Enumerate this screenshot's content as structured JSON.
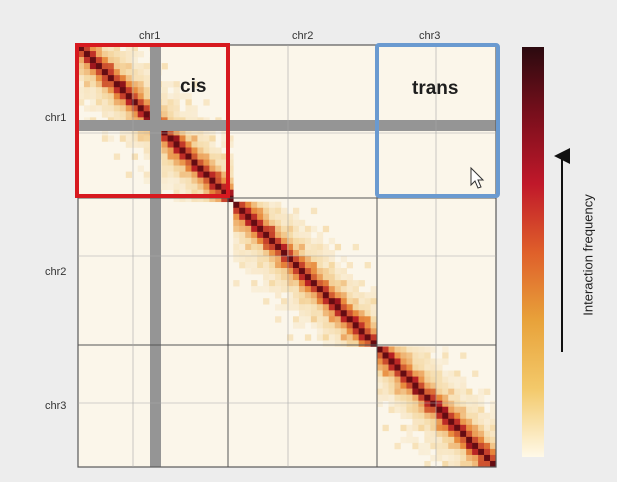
{
  "chromosomes": [
    "chr1",
    "chr2",
    "chr3"
  ],
  "top_labels": [
    "chr1",
    "chr2",
    "chr3"
  ],
  "left_labels": [
    "chr1",
    "chr2",
    "chr3"
  ],
  "regions": {
    "cis": {
      "label": "cis",
      "color": "#d7191f"
    },
    "trans": {
      "label": "trans",
      "color": "#6a9ad0"
    }
  },
  "colorbar": {
    "title": "Interaction frequency",
    "colors": [
      "#fff9e8",
      "#f3c96a",
      "#e8a23a",
      "#df5f2a",
      "#c0182a",
      "#7a0f1c",
      "#2b0a0f"
    ]
  },
  "heatmap_colors": {
    "background": "#fbf6ea",
    "masked_bin": "#959595",
    "diagonal": "#7a0f14"
  }
}
